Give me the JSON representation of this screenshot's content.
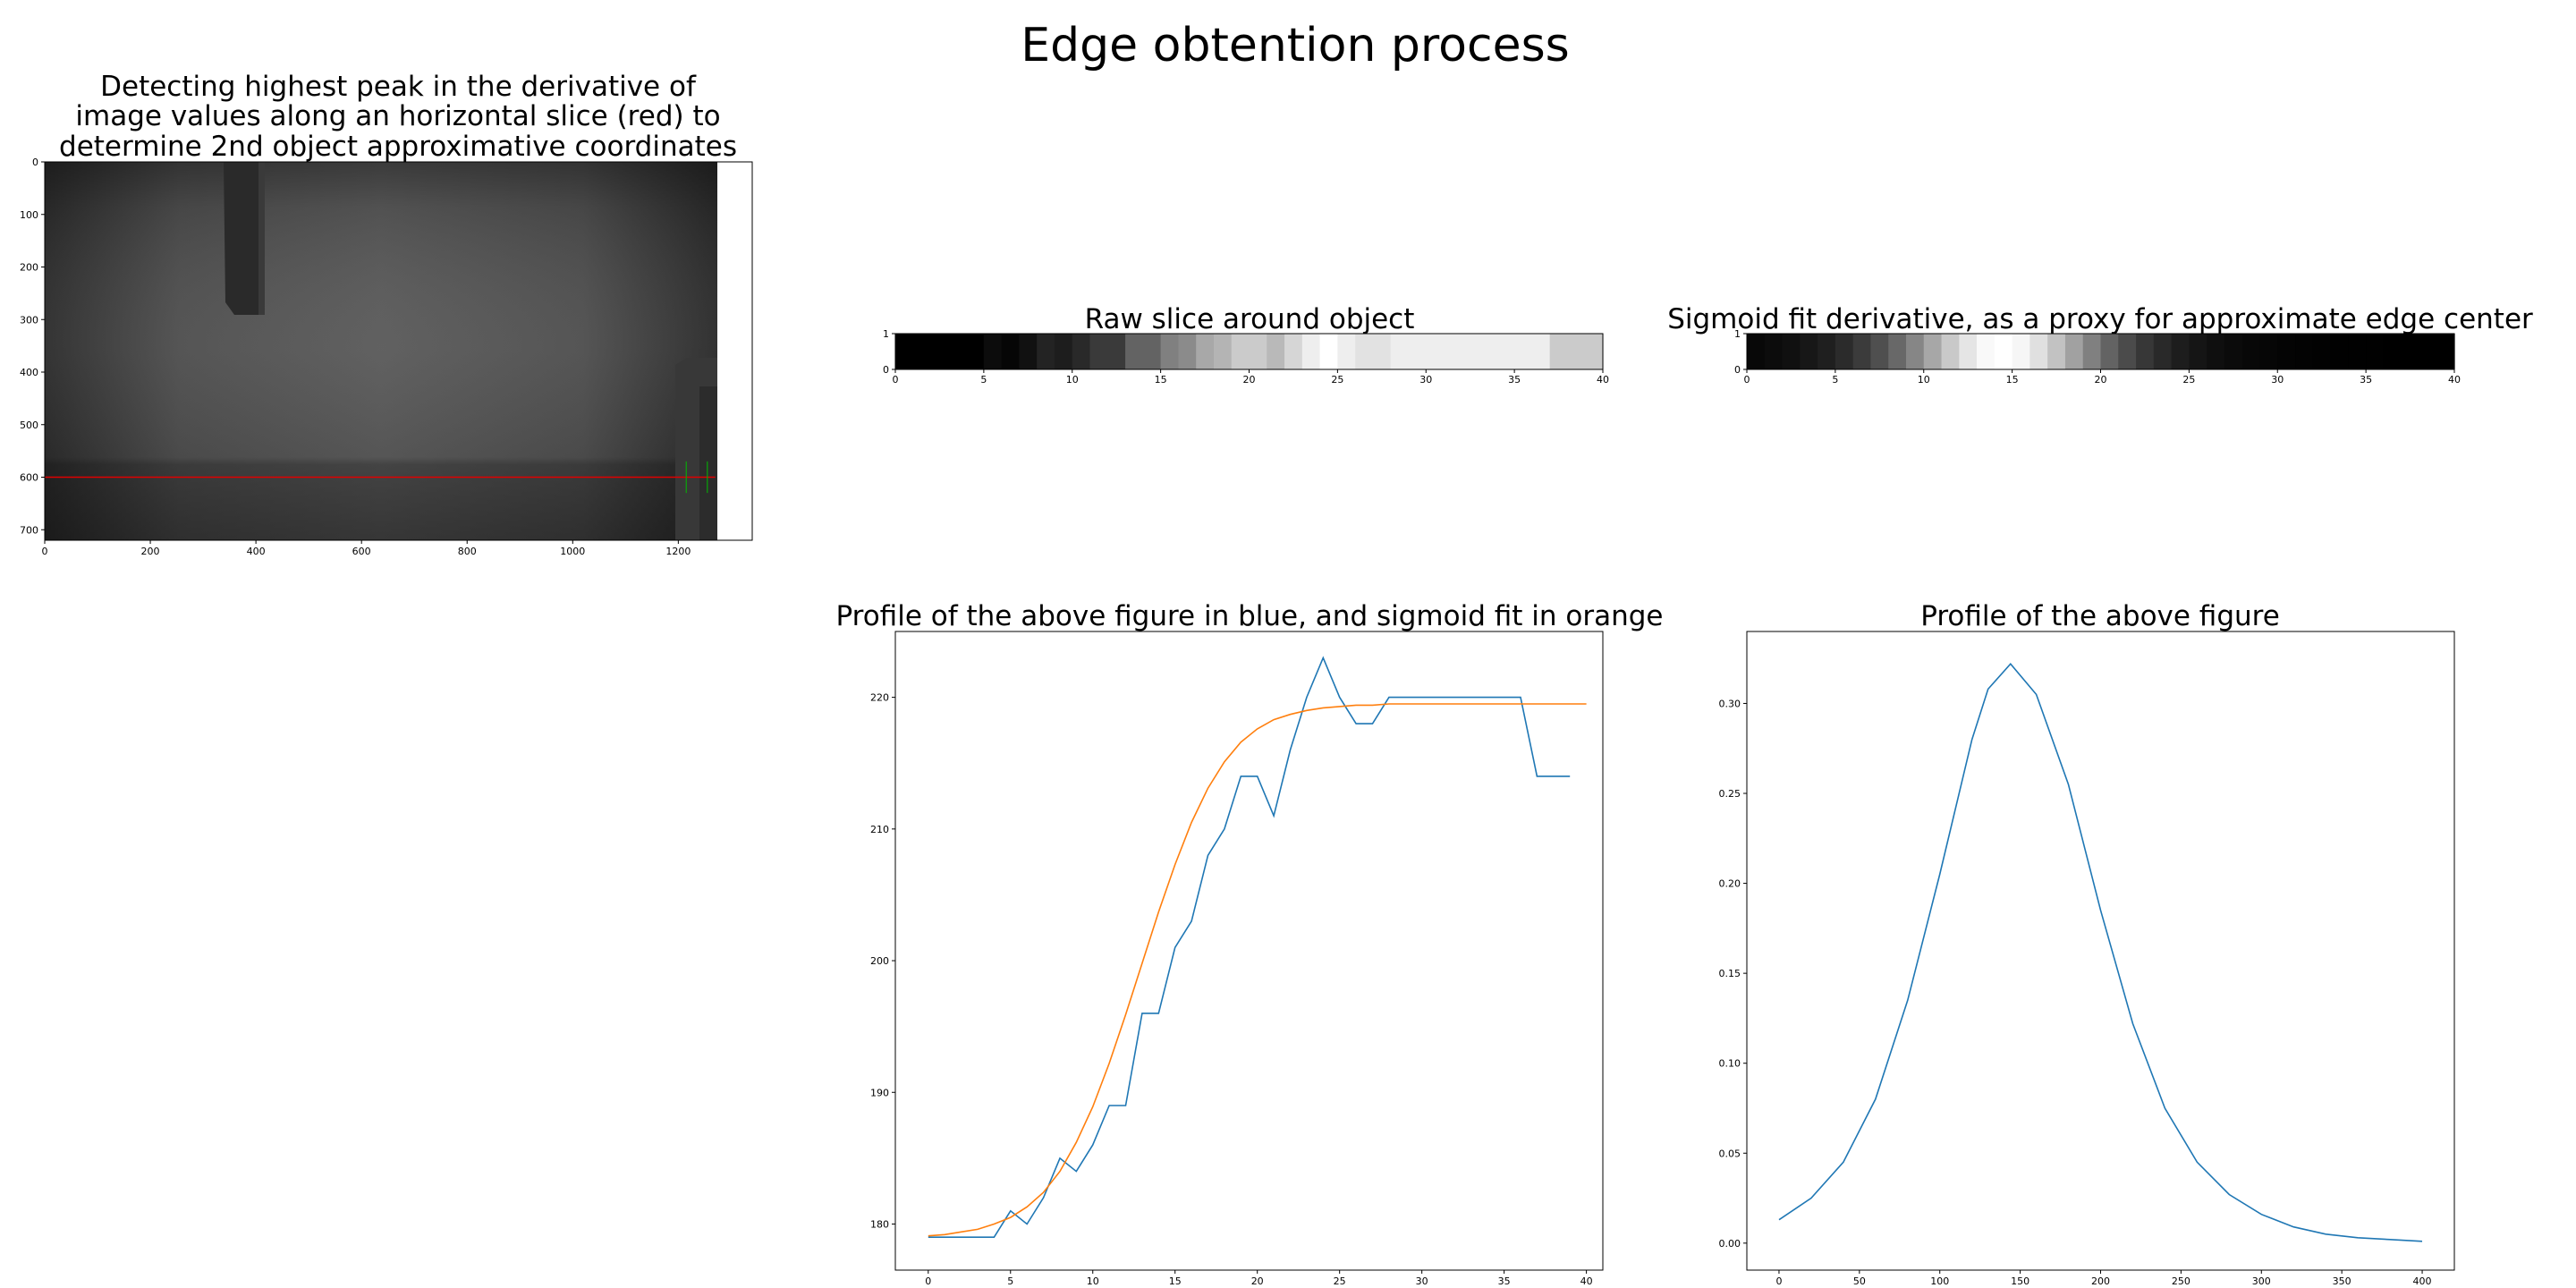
{
  "suptitle": "Edge obtention process",
  "panels": {
    "image": {
      "title_lines": [
        "Detecting highest peak in the derivative of",
        "image values along an horizontal slice (red) to",
        "determine 2nd object approximative coordinates"
      ],
      "slice_row": 600,
      "marker_columns": [
        1215,
        1255
      ]
    },
    "raw": {
      "title": "Raw slice around object"
    },
    "sigderiv": {
      "title": "Sigmoid fit derivative, as a proxy for approximate edge center"
    },
    "profile": {
      "title": "Profile of the above figure in blue, and sigmoid fit in orange"
    },
    "derivprofile": {
      "title": "Profile of the above figure"
    }
  },
  "colors": {
    "blue": "#1f77b4",
    "orange": "#ff7f0e",
    "red": "#e00000",
    "green": "#00bb00"
  },
  "chart_data": [
    {
      "type": "heatmap",
      "title": "Detecting highest peak in the derivative of image values along an horizontal slice (red) to determine 2nd object approximative coordinates",
      "xlim": [
        0,
        1340
      ],
      "ylim": [
        720,
        0
      ],
      "xticks": [
        0,
        200,
        400,
        600,
        800,
        1000,
        1200
      ],
      "yticks": [
        0,
        100,
        200,
        300,
        400,
        500,
        600,
        700
      ],
      "slice_row": 600
    },
    {
      "type": "heatmap",
      "title": "Raw slice around object",
      "xlim": [
        0,
        40
      ],
      "ylim": [
        0,
        1
      ],
      "xticks": [
        0,
        5,
        10,
        15,
        20,
        25,
        30,
        35,
        40
      ],
      "yticks": [
        0,
        1
      ],
      "values": [
        179,
        179,
        179,
        179,
        179,
        181,
        180,
        182,
        185,
        184,
        186,
        189,
        189,
        196,
        196,
        201,
        203,
        208,
        210,
        214,
        214,
        211,
        216,
        220,
        223,
        220,
        218,
        218,
        220,
        220,
        220,
        220,
        220,
        220,
        220,
        220,
        220,
        214,
        214,
        214
      ]
    },
    {
      "type": "heatmap",
      "title": "Sigmoid fit derivative, as a proxy for approximate edge center",
      "xlim": [
        0,
        40
      ],
      "ylim": [
        0,
        1
      ],
      "xticks": [
        0,
        5,
        10,
        15,
        20,
        25,
        30,
        35,
        40
      ],
      "yticks": [
        0,
        1
      ],
      "center": 14.4,
      "scale": 2.9
    },
    {
      "type": "line",
      "title": "Profile of the above figure in blue, and sigmoid fit in orange",
      "xlim": [
        -2,
        41
      ],
      "ylim": [
        176.5,
        225
      ],
      "xticks": [
        0,
        5,
        10,
        15,
        20,
        25,
        30,
        35,
        40
      ],
      "yticks": [
        180,
        190,
        200,
        210,
        220
      ],
      "series": [
        {
          "color": "#1f77b4",
          "x": [
            0,
            1,
            2,
            3,
            4,
            5,
            6,
            7,
            8,
            9,
            10,
            11,
            12,
            13,
            14,
            15,
            16,
            17,
            18,
            19,
            20,
            21,
            22,
            23,
            24,
            25,
            26,
            27,
            28,
            29,
            30,
            31,
            32,
            33,
            34,
            35,
            36,
            37,
            38,
            39
          ],
          "y": [
            179,
            179,
            179,
            179,
            179,
            181,
            180,
            182,
            185,
            184,
            186,
            189,
            189,
            196,
            196,
            201,
            203,
            208,
            210,
            214,
            214,
            211,
            216,
            220,
            223,
            220,
            218,
            218,
            220,
            220,
            220,
            220,
            220,
            220,
            220,
            220,
            220,
            214,
            214,
            214
          ]
        },
        {
          "color": "#ff7f0e",
          "x": [
            0,
            1,
            2,
            3,
            4,
            5,
            6,
            7,
            8,
            9,
            10,
            11,
            12,
            13,
            14,
            15,
            16,
            17,
            18,
            19,
            20,
            21,
            22,
            23,
            24,
            25,
            26,
            27,
            28,
            29,
            30,
            31,
            32,
            33,
            34,
            35,
            36,
            37,
            38,
            39,
            40
          ],
          "y": [
            179.1,
            179.2,
            179.4,
            179.6,
            180.0,
            180.5,
            181.3,
            182.4,
            184.0,
            186.2,
            188.9,
            192.2,
            195.9,
            199.8,
            203.7,
            207.3,
            210.5,
            213.1,
            215.1,
            216.6,
            217.6,
            218.3,
            218.7,
            219.0,
            219.2,
            219.3,
            219.4,
            219.4,
            219.5,
            219.5,
            219.5,
            219.5,
            219.5,
            219.5,
            219.5,
            219.5,
            219.5,
            219.5,
            219.5,
            219.5,
            219.5
          ]
        }
      ]
    },
    {
      "type": "line",
      "title": "Profile of the above figure",
      "xlim": [
        -20,
        420
      ],
      "ylim": [
        -0.015,
        0.34
      ],
      "xticks": [
        0,
        50,
        100,
        150,
        200,
        250,
        300,
        350,
        400
      ],
      "yticks": [
        0.0,
        0.05,
        0.1,
        0.15,
        0.2,
        0.25,
        0.3
      ],
      "ytick_labels": [
        "0.00",
        "0.05",
        "0.10",
        "0.15",
        "0.20",
        "0.25",
        "0.30"
      ],
      "series": [
        {
          "color": "#1f77b4",
          "x": [
            0,
            20,
            40,
            60,
            80,
            100,
            120,
            130,
            144,
            160,
            180,
            200,
            220,
            240,
            260,
            280,
            300,
            320,
            340,
            360,
            380,
            400
          ],
          "y": [
            0.013,
            0.025,
            0.045,
            0.08,
            0.135,
            0.205,
            0.28,
            0.308,
            0.322,
            0.305,
            0.255,
            0.185,
            0.122,
            0.075,
            0.045,
            0.027,
            0.016,
            0.009,
            0.005,
            0.003,
            0.002,
            0.001
          ]
        }
      ]
    }
  ]
}
